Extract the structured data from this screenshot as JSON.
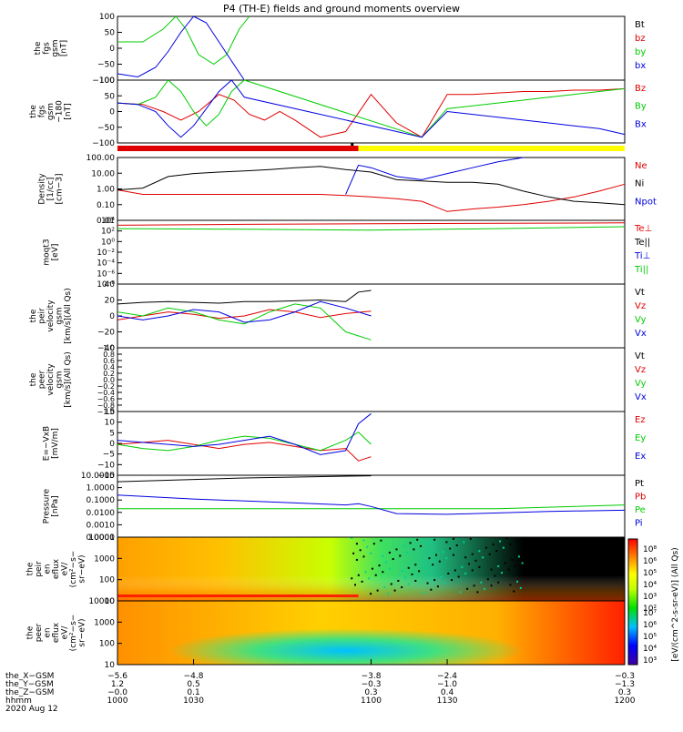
{
  "title": "P4 (TH-E) fields and ground moments overview",
  "colors": {
    "black": "#000000",
    "red": "#e00000",
    "green": "#00cc00",
    "blue": "#0000e0",
    "yellow": "#ffff00"
  },
  "panels": [
    {
      "ylabel": [
        "the",
        "fgs",
        "gsm",
        "[nT]"
      ],
      "ticks": [
        "100",
        "50",
        "0",
        "−50",
        "−100"
      ],
      "legend": [
        {
          "t": "Bt",
          "c": "black"
        },
        {
          "t": "bz",
          "c": "red"
        },
        {
          "t": "by",
          "c": "green"
        },
        {
          "t": "bx",
          "c": "blue"
        }
      ]
    },
    {
      "ylabel": [
        "the",
        "fgs",
        "gsm",
        "−180",
        "[nT]"
      ],
      "ticks": [
        "100",
        "50",
        "0",
        "−50",
        "−100"
      ],
      "legend": [
        {
          "t": "Bz",
          "c": "red"
        },
        {
          "t": "By",
          "c": "green"
        },
        {
          "t": "Bx",
          "c": "blue"
        }
      ]
    },
    {
      "ylabel": [
        "Density",
        "[1/cc]",
        "[cm−3]"
      ],
      "ticks": [
        "100.00",
        "10.00",
        "1.00",
        "0.10",
        "0.01"
      ],
      "legend": [
        {
          "t": "Ne",
          "c": "red"
        },
        {
          "t": "Ni",
          "c": "black"
        },
        {
          "t": "Npot",
          "c": "blue"
        }
      ]
    },
    {
      "ylabel": [
        "moqt3",
        "[eV]"
      ],
      "ticks": [
        "10⁴",
        "10²",
        "10⁰",
        "10⁻²",
        "10⁻⁴",
        "10⁻⁶",
        "10⁻⁸"
      ],
      "legend": [
        {
          "t": "Te⊥",
          "c": "red"
        },
        {
          "t": "Te||",
          "c": "black"
        },
        {
          "t": "Ti⊥",
          "c": "blue"
        },
        {
          "t": "Ti||",
          "c": "green"
        }
      ]
    },
    {
      "ylabel": [
        "the",
        "peir",
        "velocity",
        "gsm",
        "[km/s](All Qs)"
      ],
      "ticks": [
        "40",
        "20",
        "0",
        "−20",
        "−40"
      ],
      "legend": [
        {
          "t": "Vt",
          "c": "black"
        },
        {
          "t": "Vz",
          "c": "red"
        },
        {
          "t": "Vy",
          "c": "green"
        },
        {
          "t": "Vx",
          "c": "blue"
        }
      ]
    },
    {
      "ylabel": [
        "the",
        "peer",
        "velocity",
        "gsm",
        "[km/s](All Qs)"
      ],
      "ticks": [
        "1.0",
        "0.8",
        "0.6",
        "0.4",
        "0.2",
        "0.0",
        "−0.2",
        "−0.4",
        "−0.6",
        "−0.8",
        "−1.0"
      ],
      "legend": [
        {
          "t": "Vt",
          "c": "black"
        },
        {
          "t": "Vz",
          "c": "red"
        },
        {
          "t": "Vy",
          "c": "green"
        },
        {
          "t": "Vx",
          "c": "blue"
        }
      ]
    },
    {
      "ylabel": [
        "E=−VxB",
        "[mV/m]"
      ],
      "ticks": [
        "15",
        "10",
        "5",
        "0",
        "−5",
        "−10",
        "−15"
      ],
      "legend": [
        {
          "t": "Ez",
          "c": "red"
        },
        {
          "t": "Ey",
          "c": "green"
        },
        {
          "t": "Ex",
          "c": "blue"
        }
      ]
    },
    {
      "ylabel": [
        "Pressure",
        "[nPa]"
      ],
      "ticks": [
        "10.0000",
        "1.0000",
        "0.1000",
        "0.0100",
        "0.0010",
        "0.0001"
      ],
      "legend": [
        {
          "t": "Pt",
          "c": "black"
        },
        {
          "t": "Pb",
          "c": "red"
        },
        {
          "t": "Pe",
          "c": "green"
        },
        {
          "t": "Pi",
          "c": "blue"
        }
      ]
    },
    {
      "ylabel": [
        "the",
        "peir",
        "en",
        "eflux",
        "eV/",
        "(cm²−s−",
        "sr−eV)"
      ],
      "ticks": [
        "10000",
        "1000",
        "100",
        "10"
      ],
      "legend": []
    },
    {
      "ylabel": [
        "the",
        "peer",
        "en",
        "eflux",
        "eV/",
        "(cm²−s−",
        "sr−eV)"
      ],
      "ticks": [
        "10000",
        "1000",
        "100",
        "10"
      ],
      "legend": []
    }
  ],
  "colorbar": {
    "label": "[eV/(cm^2-s-sr-eV)] (All Qs)",
    "top_ticks": [
      "10⁸",
      "10⁶",
      "10⁵",
      "10⁴",
      "10³",
      "10²"
    ],
    "bot_ticks": [
      "10⁷",
      "10⁶",
      "10⁵",
      "10⁴",
      "10³"
    ]
  },
  "xaxis": {
    "rows": [
      {
        "label": "the_X−GSM",
        "values": [
          "−5.6",
          "−4.8",
          "−3.8",
          "−2.4",
          "−0.3"
        ]
      },
      {
        "label": "the_Y−GSM",
        "values": [
          "1.2",
          "0.5",
          "−0.3",
          "−1.0",
          "−1.3"
        ]
      },
      {
        "label": "the_Z−GSM",
        "values": [
          "−0.0",
          "0.1",
          "0.3",
          "0.4",
          "0.3"
        ]
      },
      {
        "label": "hhmm",
        "values": [
          "1000",
          "1030",
          "1100",
          "1130",
          "1200"
        ]
      }
    ],
    "date": "2020 Aug 12"
  },
  "chart_data": {
    "type": "line",
    "title": "P4 (TH-E) fields and ground moments overview",
    "x_hhmm": [
      1000,
      1030,
      1100,
      1130,
      1200
    ],
    "series": [
      {
        "panel": 0,
        "name": "by",
        "x": [
          1000,
          1010,
          1018,
          1023,
          1027,
          1032,
          1038,
          1043,
          1048,
          1052
        ],
        "values": [
          20,
          20,
          60,
          100,
          60,
          -20,
          -50,
          -20,
          60,
          100
        ]
      },
      {
        "panel": 0,
        "name": "bx",
        "x": [
          1000,
          1008,
          1015,
          1020,
          1025,
          1030,
          1035,
          1040,
          1045,
          1050
        ],
        "values": [
          -80,
          -90,
          -60,
          -10,
          50,
          100,
          80,
          20,
          -40,
          -100
        ]
      },
      {
        "panel": 1,
        "name": "Bz",
        "x": [
          1000,
          1010,
          1018,
          1025,
          1032,
          1040,
          1046,
          1052,
          1058,
          1064,
          1070,
          1080,
          1090,
          1100,
          1110,
          1120,
          1130,
          1140,
          1150,
          1160,
          1170,
          1180,
          1190,
          1200
        ],
        "values": [
          20,
          15,
          -10,
          -40,
          -10,
          50,
          30,
          -20,
          -40,
          -10,
          -40,
          -100,
          -80,
          50,
          -50,
          -100,
          50,
          50,
          55,
          60,
          60,
          65,
          65,
          70
        ]
      },
      {
        "panel": 1,
        "name": "By",
        "x": [
          1000,
          1008,
          1015,
          1020,
          1025,
          1030,
          1035,
          1040,
          1045,
          1050,
          1120,
          1130,
          1140,
          1150,
          1160,
          1170,
          1180,
          1190,
          1200
        ],
        "values": [
          20,
          15,
          40,
          100,
          60,
          -10,
          -60,
          -20,
          60,
          100,
          -100,
          0,
          10,
          20,
          30,
          40,
          50,
          60,
          70
        ]
      },
      {
        "panel": 1,
        "name": "Bx",
        "x": [
          1000,
          1008,
          1015,
          1020,
          1025,
          1030,
          1035,
          1040,
          1045,
          1050,
          1120,
          1130,
          1140,
          1150,
          1160,
          1170,
          1180,
          1190,
          1200
        ],
        "values": [
          20,
          15,
          -10,
          -60,
          -100,
          -60,
          0,
          60,
          100,
          40,
          -100,
          -10,
          -20,
          -30,
          -40,
          -50,
          -60,
          -70,
          -90
        ]
      },
      {
        "panel": 2,
        "name": "Ne",
        "x": [
          1000,
          1010,
          1020,
          1030,
          1040,
          1050,
          1060,
          1070,
          1080,
          1090,
          1100,
          1110,
          1120,
          1130,
          1140,
          1150,
          1160,
          1170,
          1180,
          1190,
          1200
        ],
        "values": [
          0.6,
          0.3,
          0.3,
          0.3,
          0.3,
          0.3,
          0.3,
          0.3,
          0.3,
          0.25,
          0.2,
          0.15,
          0.1,
          0.02,
          0.03,
          0.04,
          0.06,
          0.1,
          0.2,
          0.5,
          1.5
        ]
      },
      {
        "panel": 2,
        "name": "Ni",
        "x": [
          1000,
          1010,
          1020,
          1030,
          1040,
          1050,
          1060,
          1070,
          1080,
          1090,
          1100,
          1110,
          1120,
          1130,
          1140,
          1150,
          1160,
          1170,
          1180,
          1190,
          1200
        ],
        "values": [
          0.6,
          0.8,
          5,
          8,
          10,
          12,
          15,
          20,
          25,
          15,
          10,
          3,
          2.5,
          2,
          2,
          1.5,
          0.5,
          0.2,
          0.1,
          0.08,
          0.06
        ]
      },
      {
        "panel": 2,
        "name": "Npot",
        "x": [
          1090,
          1095,
          1100,
          1110,
          1120,
          1130,
          1140,
          1150,
          1160
        ],
        "values": [
          0.3,
          30,
          20,
          5,
          3,
          8,
          20,
          50,
          100
        ]
      },
      {
        "panel": 3,
        "name": "Te⊥",
        "x": [
          1000,
          1050,
          1100,
          1150,
          1200
        ],
        "values": [
          10000,
          15000,
          20000,
          25000,
          30000
        ]
      },
      {
        "panel": 3,
        "name": "Ti||",
        "x": [
          1000,
          1050,
          1100,
          1150,
          1200
        ],
        "values": [
          2000,
          1500,
          1000,
          2000,
          5000
        ]
      },
      {
        "panel": 4,
        "name": "Vt",
        "x": [
          1000,
          1010,
          1020,
          1030,
          1040,
          1050,
          1060,
          1070,
          1080,
          1090,
          1095,
          1100
        ],
        "values": [
          15,
          17,
          18,
          17,
          16,
          18,
          18,
          19,
          20,
          18,
          30,
          32
        ]
      },
      {
        "panel": 4,
        "name": "Vz",
        "x": [
          1000,
          1010,
          1020,
          1030,
          1040,
          1050,
          1060,
          1070,
          1080,
          1090,
          1100
        ],
        "values": [
          -5,
          0,
          5,
          2,
          -3,
          0,
          8,
          5,
          -2,
          3,
          6
        ]
      },
      {
        "panel": 4,
        "name": "Vy",
        "x": [
          1000,
          1010,
          1020,
          1030,
          1040,
          1050,
          1060,
          1070,
          1080,
          1090,
          1100
        ],
        "values": [
          5,
          0,
          10,
          5,
          -5,
          -10,
          5,
          15,
          10,
          -20,
          -30
        ]
      },
      {
        "panel": 4,
        "name": "Vx",
        "x": [
          1000,
          1010,
          1020,
          1030,
          1040,
          1050,
          1060,
          1070,
          1080,
          1090,
          1100
        ],
        "values": [
          0,
          -5,
          0,
          8,
          5,
          -8,
          -5,
          5,
          18,
          10,
          0
        ]
      },
      {
        "panel": 6,
        "name": "Ez",
        "x": [
          1000,
          1010,
          1020,
          1030,
          1040,
          1050,
          1060,
          1070,
          1080,
          1090,
          1095,
          1100
        ],
        "values": [
          0,
          1,
          2,
          0,
          -2,
          0,
          1,
          -1,
          -3,
          -2,
          -8,
          -6
        ]
      },
      {
        "panel": 6,
        "name": "Ey",
        "x": [
          1000,
          1010,
          1020,
          1030,
          1040,
          1050,
          1060,
          1070,
          1080,
          1090,
          1095,
          1100
        ],
        "values": [
          0,
          -2,
          -3,
          -1,
          2,
          4,
          3,
          0,
          -3,
          2,
          6,
          0
        ]
      },
      {
        "panel": 6,
        "name": "Ex",
        "x": [
          1000,
          1010,
          1020,
          1030,
          1040,
          1050,
          1060,
          1070,
          1080,
          1090,
          1095,
          1100
        ],
        "values": [
          2,
          1,
          0,
          -1,
          0,
          2,
          4,
          0,
          -5,
          -3,
          10,
          15
        ]
      },
      {
        "panel": 7,
        "name": "Pt",
        "x": [
          1000,
          1050,
          1100
        ],
        "values": [
          3,
          6,
          9
        ]
      },
      {
        "panel": 7,
        "name": "Pe",
        "x": [
          1000,
          1050,
          1100,
          1150,
          1200
        ],
        "values": [
          0.02,
          0.02,
          0.02,
          0.02,
          0.04
        ]
      },
      {
        "panel": 7,
        "name": "Pi",
        "x": [
          1000,
          1030,
          1060,
          1090,
          1095,
          1100,
          1110,
          1130,
          1150,
          1170,
          1200
        ],
        "values": [
          0.25,
          0.12,
          0.07,
          0.04,
          0.05,
          0.03,
          0.008,
          0.007,
          0.009,
          0.012,
          0.015
        ]
      }
    ]
  }
}
